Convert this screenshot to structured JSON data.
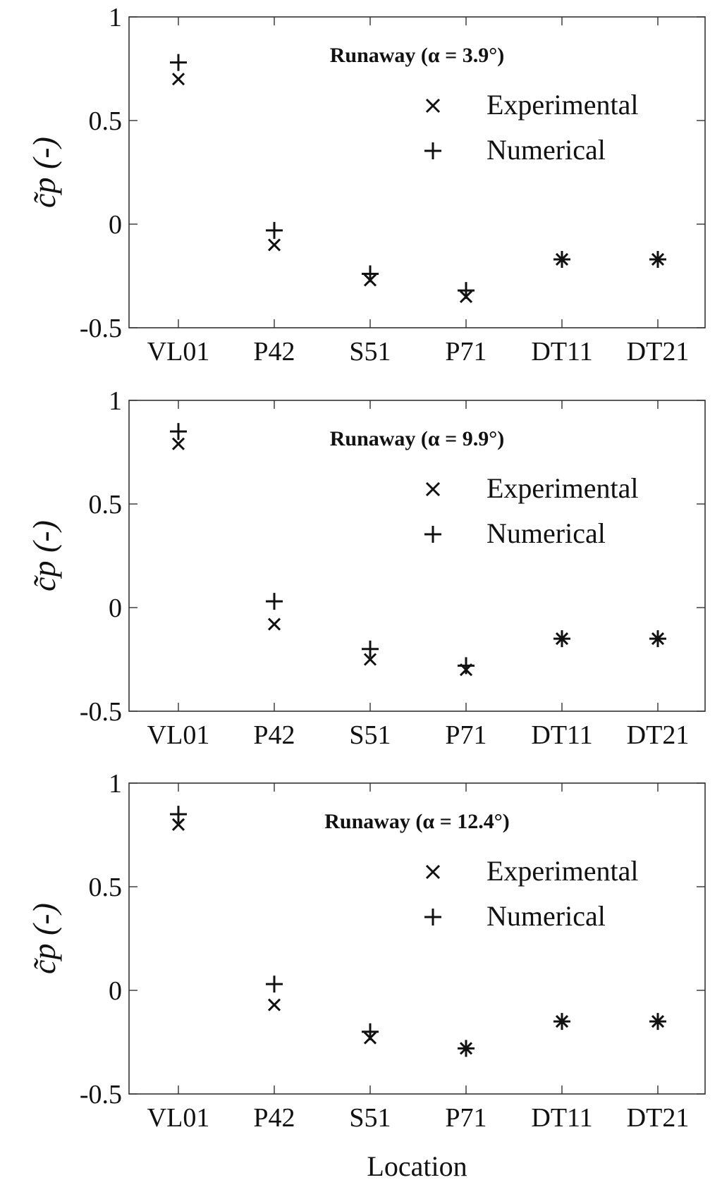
{
  "chart_data": [
    {
      "type": "scatter",
      "title": "Runaway (α = 3.9°)",
      "xlabel": "",
      "ylabel": "c̃p (-)",
      "categories": [
        "VL01",
        "P42",
        "S51",
        "P71",
        "DT11",
        "DT21"
      ],
      "ylim": [
        -0.5,
        1
      ],
      "yticks": [
        "1",
        "0.5",
        "0",
        "-0.5"
      ],
      "legend_position": "top-right",
      "grid": false,
      "series": [
        {
          "name": "Experimental",
          "marker": "x",
          "values": [
            0.7,
            -0.1,
            -0.27,
            -0.35,
            -0.17,
            -0.17
          ]
        },
        {
          "name": "Numerical",
          "marker": "+",
          "values": [
            0.78,
            -0.03,
            -0.24,
            -0.32,
            -0.17,
            -0.17
          ]
        }
      ]
    },
    {
      "type": "scatter",
      "title": "Runaway (α = 9.9°)",
      "xlabel": "",
      "ylabel": "c̃p (-)",
      "categories": [
        "VL01",
        "P42",
        "S51",
        "P71",
        "DT11",
        "DT21"
      ],
      "ylim": [
        -0.5,
        1
      ],
      "yticks": [
        "1",
        "0.5",
        "0",
        "-0.5"
      ],
      "legend_position": "top-right",
      "grid": false,
      "series": [
        {
          "name": "Experimental",
          "marker": "x",
          "values": [
            0.79,
            -0.08,
            -0.25,
            -0.3,
            -0.15,
            -0.15
          ]
        },
        {
          "name": "Numerical",
          "marker": "+",
          "values": [
            0.85,
            0.03,
            -0.2,
            -0.28,
            -0.15,
            -0.15
          ]
        }
      ]
    },
    {
      "type": "scatter",
      "title": "Runaway (α = 12.4°)",
      "xlabel": "Location",
      "ylabel": "c̃p (-)",
      "categories": [
        "VL01",
        "P42",
        "S51",
        "P71",
        "DT11",
        "DT21"
      ],
      "ylim": [
        -0.5,
        1
      ],
      "yticks": [
        "1",
        "0.5",
        "0",
        "-0.5"
      ],
      "legend_position": "top-right",
      "grid": false,
      "series": [
        {
          "name": "Experimental",
          "marker": "x",
          "values": [
            0.8,
            -0.07,
            -0.23,
            -0.28,
            -0.15,
            -0.15
          ]
        },
        {
          "name": "Numerical",
          "marker": "+",
          "values": [
            0.85,
            0.03,
            -0.2,
            -0.28,
            -0.15,
            -0.15
          ]
        }
      ]
    }
  ]
}
